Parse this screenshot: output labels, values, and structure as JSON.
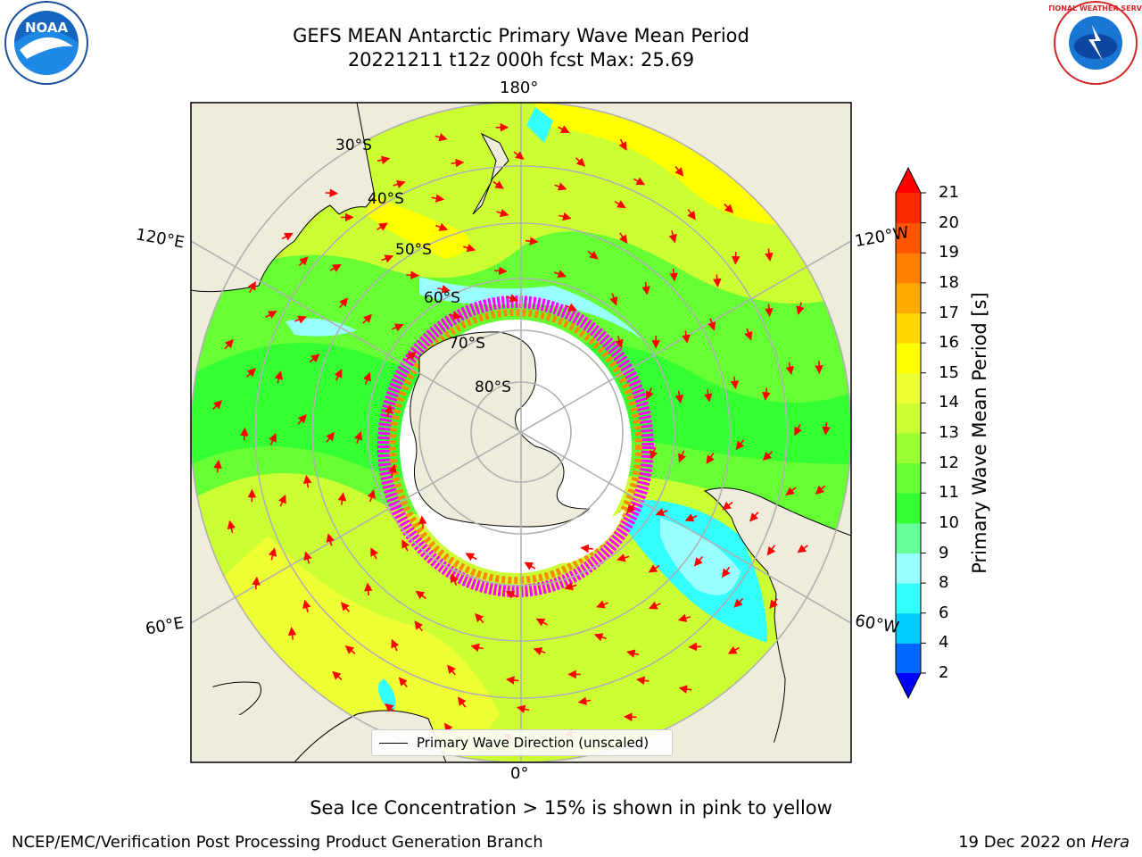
{
  "header": {
    "title_line1": "GEFS MEAN Antarctic Primary Wave Mean Period",
    "title_line2": "20221211 t12z 000h fcst   Max: 25.69"
  },
  "logos": {
    "left": "noaa-logo",
    "left_text": "NOAA",
    "right": "nws-logo",
    "right_text": "NATIONAL WEATHER SERVICE"
  },
  "map": {
    "projection": "south-polar-stereographic",
    "longitude_labels": {
      "top": "180°",
      "bottom": "0°",
      "upper_left": "120°E",
      "upper_right": "120°W",
      "lower_left": "60°E",
      "lower_right": "60°W"
    },
    "latitude_labels": [
      "30°S",
      "40°S",
      "50°S",
      "60°S",
      "70°S",
      "80°S"
    ],
    "legend_entry": "Primary Wave Direction (unscaled)",
    "land_color": "#efecdc",
    "arrow_color": "#ff0000",
    "sea_ice_colors": [
      "#ff00ff",
      "#ff8c00",
      "#ffd700"
    ]
  },
  "colorbar": {
    "label": "Primary Wave Mean Period [s]",
    "ticks": [
      "2",
      "4",
      "6",
      "8",
      "9",
      "10",
      "11",
      "12",
      "13",
      "14",
      "15",
      "16",
      "17",
      "18",
      "19",
      "20",
      "21"
    ],
    "colors": [
      "#0066ff",
      "#00ccff",
      "#33ffff",
      "#99ffff",
      "#66ff99",
      "#33ff33",
      "#66ff33",
      "#99ff33",
      "#ccff33",
      "#eeff33",
      "#ffff00",
      "#ffd500",
      "#ffaa00",
      "#ff8000",
      "#ff5500",
      "#ff2a00"
    ],
    "extend_low_color": "#0000ff",
    "extend_high_color": "#ff0000"
  },
  "footer": {
    "caption": "Sea Ice Concentration > 15% is shown in pink to yellow",
    "left": "NCEP/EMC/Verification Post Processing Product Generation Branch",
    "right_prefix": "19 Dec 2022 on ",
    "right_italic": "Hera"
  }
}
